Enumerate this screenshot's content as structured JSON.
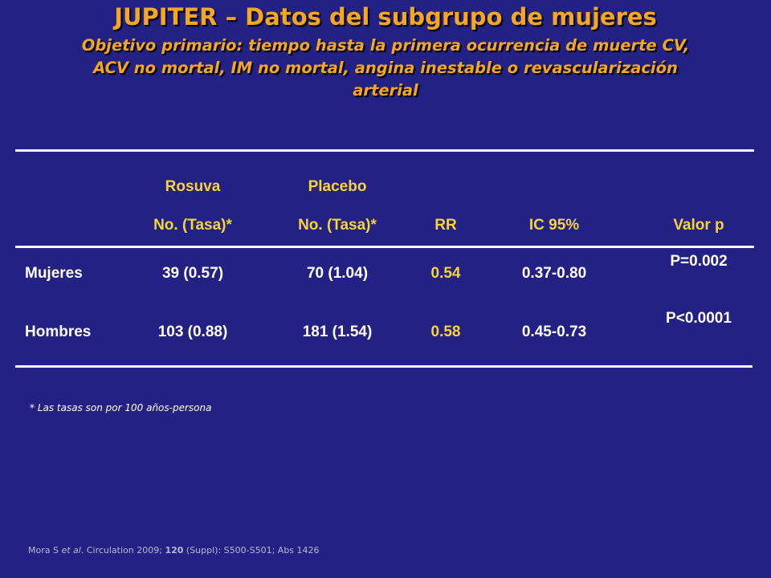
{
  "slide": {
    "title": "JUPITER – Datos del subgrupo de mujeres",
    "subtitle_lines": [
      "Objetivo primario: tiempo hasta la primera ocurrencia de muerte CV,",
      "ACV no mortal, IM no mortal, angina inestable o revascularización",
      "arterial"
    ]
  },
  "table": {
    "group_headers": {
      "rosuva": "Rosuva",
      "placebo": "Placebo"
    },
    "column_headers": {
      "rosuva": "No. (Tasa)*",
      "placebo": "No. (Tasa)*",
      "rr": "RR",
      "ci": "IC 95%",
      "p": "Valor p"
    },
    "rows": [
      {
        "label": "Mujeres",
        "rosuva": "39 (0.57)",
        "placebo": "70 (1.04)",
        "rr": "0.54",
        "ci": "0.37-0.80",
        "p": "P=0.002"
      },
      {
        "label": "Hombres",
        "rosuva": "103 (0.88)",
        "placebo": "181 (1.54)",
        "rr": "0.58",
        "ci": "0.45-0.73",
        "p": "P<0.0001"
      }
    ]
  },
  "footnote": "* Las tasas son por 100 años-persona",
  "citation": {
    "prefix": "Mora S ",
    "etal": "et al",
    "journal": ". Circulation  2009; ",
    "volume": "120",
    "rest": " (Suppl): S500-S501;  Abs 1426"
  },
  "colors": {
    "background": "#232184",
    "title": "#F5A623",
    "header": "#F5D33A",
    "text": "#ffffff"
  }
}
